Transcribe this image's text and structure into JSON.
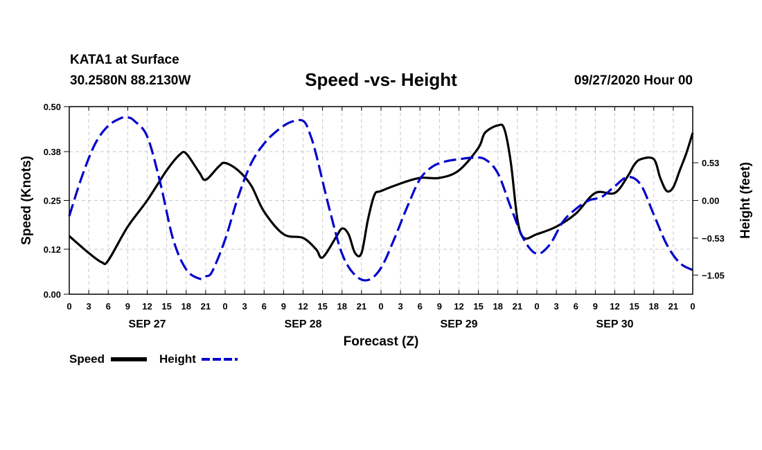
{
  "header": {
    "station": "KATA1 at Surface",
    "coords": "30.2580N 88.2130W",
    "title": "Speed -vs- Height",
    "date": "09/27/2020 Hour 00"
  },
  "legend": {
    "speed_label": "Speed",
    "height_label": "Height",
    "speed_color": "#000000",
    "height_color": "#0000cc"
  },
  "chart_data": {
    "type": "line",
    "title": "Speed -vs- Height",
    "xlabel": "Forecast (Z)",
    "ylabel": "Speed (Knots)",
    "y2label": "Height (feet)",
    "xlim": [
      0,
      96
    ],
    "ylim": [
      0,
      0.5
    ],
    "y2lim": [
      -1.32,
      1.32
    ],
    "x_tick_step_hours": 3,
    "x_tick_labels": [
      "0",
      "3",
      "6",
      "9",
      "12",
      "15",
      "18",
      "21",
      "0",
      "3",
      "6",
      "9",
      "12",
      "15",
      "18",
      "21",
      "0",
      "3",
      "6",
      "9",
      "12",
      "15",
      "18",
      "21",
      "0",
      "3",
      "6",
      "9",
      "12",
      "15",
      "18",
      "21",
      "0"
    ],
    "day_labels": [
      {
        "label": "SEP 27",
        "hour": 12
      },
      {
        "label": "SEP 28",
        "hour": 36
      },
      {
        "label": "SEP 29",
        "hour": 60
      },
      {
        "label": "SEP 30",
        "hour": 84
      }
    ],
    "y_ticks": [
      0.0,
      0.12,
      0.25,
      0.38,
      0.5
    ],
    "y_tick_labels": [
      "0.00",
      "0.12",
      "0.25",
      "0.38",
      "0.50"
    ],
    "y2_ticks": [
      0.53,
      0.0,
      -0.53,
      -1.05
    ],
    "y2_tick_labels": [
      "0.53",
      "0.00",
      "−0.53",
      "−1.05"
    ],
    "grid": true,
    "series": [
      {
        "name": "Speed",
        "axis": "left",
        "style": "solid",
        "x": [
          0,
          3,
          5,
          6,
          9,
          12,
          15,
          17,
          18,
          20,
          21,
          23,
          24,
          26,
          28,
          30,
          33,
          36,
          38,
          39,
          41,
          42,
          43,
          44,
          45,
          46,
          47,
          48,
          51,
          54,
          57,
          60,
          63,
          64,
          66,
          67,
          68,
          69,
          70,
          72,
          75,
          78,
          81,
          84,
          86,
          87,
          88,
          90,
          91,
          92,
          93,
          94,
          95,
          96
        ],
        "values": [
          0.155,
          0.11,
          0.085,
          0.09,
          0.18,
          0.25,
          0.33,
          0.372,
          0.375,
          0.325,
          0.305,
          0.34,
          0.35,
          0.33,
          0.29,
          0.22,
          0.16,
          0.15,
          0.12,
          0.098,
          0.15,
          0.175,
          0.16,
          0.11,
          0.11,
          0.2,
          0.265,
          0.275,
          0.295,
          0.31,
          0.31,
          0.33,
          0.39,
          0.43,
          0.45,
          0.44,
          0.35,
          0.2,
          0.15,
          0.16,
          0.18,
          0.215,
          0.27,
          0.27,
          0.315,
          0.345,
          0.36,
          0.36,
          0.31,
          0.275,
          0.285,
          0.33,
          0.375,
          0.43
        ]
      },
      {
        "name": "Height",
        "axis": "right",
        "style": "dashed",
        "x": [
          0,
          2,
          4,
          6,
          8,
          9,
          10,
          12,
          14,
          16,
          18,
          20,
          21,
          22,
          24,
          26,
          28,
          30,
          32,
          34,
          36,
          37,
          38,
          40,
          42,
          44,
          46,
          48,
          50,
          52,
          54,
          56,
          58,
          60,
          62,
          64,
          66,
          68,
          70,
          72,
          74,
          76,
          78,
          80,
          82,
          84,
          86,
          88,
          90,
          92,
          94,
          96
        ],
        "values": [
          -0.22,
          0.35,
          0.8,
          1.05,
          1.16,
          1.17,
          1.12,
          0.9,
          0.25,
          -0.55,
          -0.97,
          -1.1,
          -1.07,
          -1.0,
          -0.55,
          0.05,
          0.52,
          0.8,
          0.98,
          1.1,
          1.12,
          0.95,
          0.65,
          -0.1,
          -0.75,
          -1.05,
          -1.12,
          -0.95,
          -0.55,
          -0.1,
          0.3,
          0.48,
          0.55,
          0.58,
          0.6,
          0.58,
          0.38,
          -0.1,
          -0.55,
          -0.75,
          -0.62,
          -0.3,
          -0.12,
          0.0,
          0.05,
          0.2,
          0.33,
          0.22,
          -0.2,
          -0.62,
          -0.88,
          -0.98
        ]
      }
    ]
  }
}
